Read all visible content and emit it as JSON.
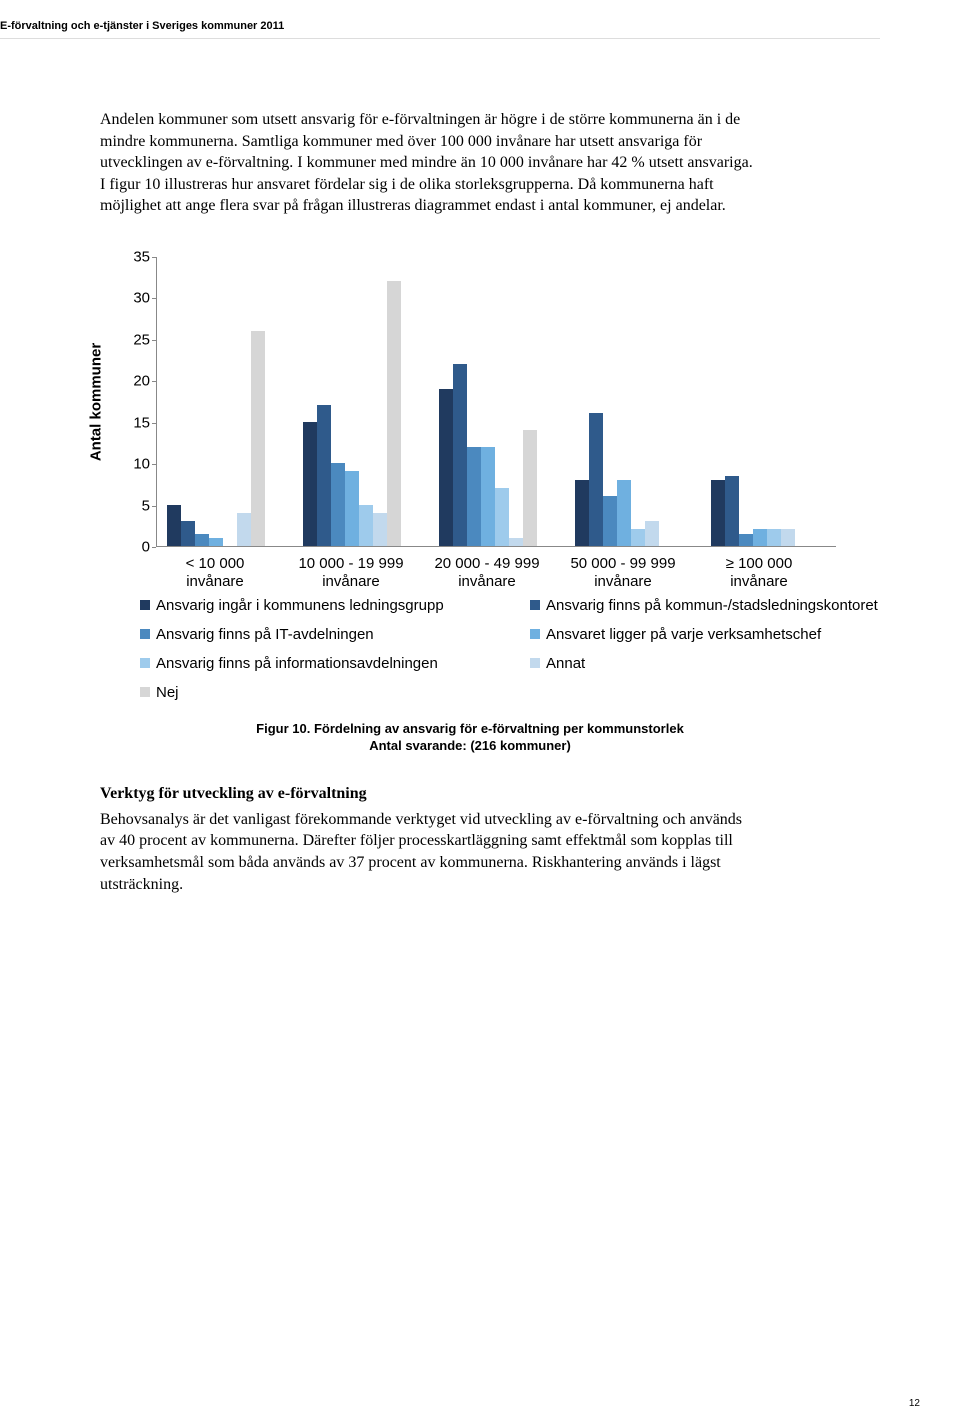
{
  "header": "E-förvaltning och e-tjänster i Sveriges kommuner 2011",
  "paragraph1": "Andelen kommuner som utsett ansvarig för e-förvaltningen är högre i de större kommunerna än i de mindre kommunerna. Samtliga kommuner med över 100 000 invånare har utsett ansvariga för utvecklingen av e-förvaltning. I kommuner med mindre än 10 000 invånare har 42 % utsett ansvariga. I figur 10 illustreras hur ansvaret fördelar sig i de olika storleksgrupperna. Då kommunerna haft möjlighet att ange flera svar på frågan illustreras diagrammet endast i antal kommuner, ej andelar.",
  "chart": {
    "ylabel": "Antal kommuner",
    "ymax": 35,
    "ytick_step": 5,
    "yticks": [
      0,
      5,
      10,
      15,
      20,
      25,
      30,
      35
    ],
    "categories": [
      {
        "line1": "< 10 000",
        "line2": "invånare"
      },
      {
        "line1": "10 000 - 19 999",
        "line2": "invånare"
      },
      {
        "line1": "20 000 - 49 999",
        "line2": "invånare"
      },
      {
        "line1": "50 000 - 99 999",
        "line2": "invånare"
      },
      {
        "line1": "≥ 100 000",
        "line2": "invånare"
      }
    ],
    "series_colors": [
      "#203a5f",
      "#2f5a8b",
      "#4b89bf",
      "#6fb0e0",
      "#9ecbec",
      "#c2d9ed",
      "#d6d6d6"
    ],
    "data": [
      [
        5,
        3,
        1.5,
        1,
        0,
        4,
        26
      ],
      [
        15,
        17,
        10,
        9,
        5,
        4,
        32
      ],
      [
        19,
        22,
        12,
        12,
        7,
        1,
        14
      ],
      [
        8,
        16,
        6,
        8,
        2,
        3,
        0
      ],
      [
        8,
        8.5,
        1.5,
        2,
        2,
        2,
        0
      ]
    ],
    "legend": [
      {
        "color": "#203a5f",
        "label": "Ansvarig ingår i kommunens ledningsgrupp"
      },
      {
        "color": "#2f5a8b",
        "label": "Ansvarig finns på kommun-/stadsledningskontoret"
      },
      {
        "color": "#4b89bf",
        "label": "Ansvarig finns på IT-avdelningen"
      },
      {
        "color": "#6fb0e0",
        "label": "Ansvaret ligger på varje verksamhetschef"
      },
      {
        "color": "#9ecbec",
        "label": "Ansvarig finns på informationsavdelningen"
      },
      {
        "color": "#c2d9ed",
        "label": "Annat"
      },
      {
        "color": "#d6d6d6",
        "label": "Nej"
      }
    ]
  },
  "caption_line1": "Figur 10. Fördelning av ansvarig för e-förvaltning per kommunstorlek",
  "caption_line2": "Antal svarande: (216 kommuner)",
  "subhead": "Verktyg för utveckling av e-förvaltning",
  "paragraph2": "Behovsanalys är det vanligast förekommande verktyget vid utveckling av e-förvaltning och används av 40 procent av kommunerna. Därefter följer processkartläggning samt effektmål som kopplas till verksamhetsmål som båda används av 37 procent av kommunerna. Riskhantering används i lägst utsträckning.",
  "pagenum": "12"
}
